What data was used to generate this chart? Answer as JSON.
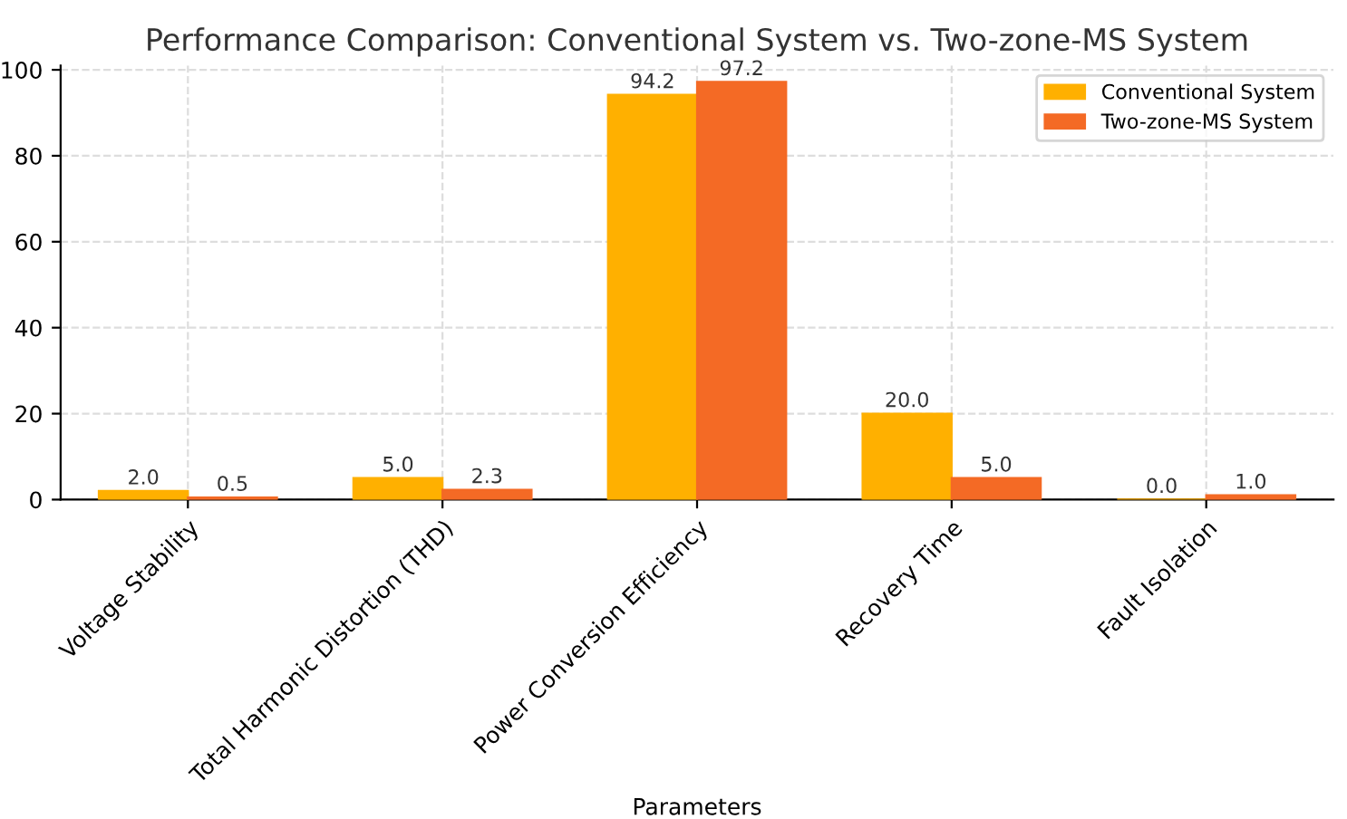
{
  "chart_data": {
    "type": "bar",
    "title": "Performance Comparison: Conventional System vs. Two-zone-MS System",
    "xlabel": "Parameters",
    "categories": [
      "Voltage Stability",
      "Total Harmonic Distortion (THD)",
      "Power Conversion Efficiency",
      "Recovery Time",
      "Fault Isolation"
    ],
    "series": [
      {
        "name": "Conventional System",
        "color": "#ffb000",
        "values": [
          2.0,
          5.0,
          94.2,
          20.0,
          0.0
        ],
        "value_labels": [
          "2.0",
          "5.0",
          "94.2",
          "20.0",
          "0.0"
        ]
      },
      {
        "name": "Two-zone-MS System",
        "color": "#f46a25",
        "values": [
          0.5,
          2.3,
          97.2,
          5.0,
          1.0
        ],
        "value_labels": [
          "0.5",
          "2.3",
          "97.2",
          "5.0",
          "1.0"
        ]
      }
    ],
    "ylim": [
      0,
      101
    ],
    "yticks": [
      0,
      20,
      40,
      60,
      80,
      100
    ],
    "grid": true,
    "legend": "top right"
  }
}
